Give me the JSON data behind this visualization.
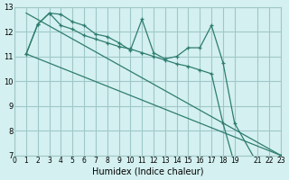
{
  "xlabel": "Humidex (Indice chaleur)",
  "background_color": "#d4f0f0",
  "grid_color": "#a0c8c8",
  "line_color": "#2e7d6e",
  "xlim": [
    0,
    23
  ],
  "ylim": [
    7,
    13
  ],
  "yticks": [
    7,
    8,
    9,
    10,
    11,
    12,
    13
  ],
  "xticks": [
    0,
    1,
    2,
    3,
    4,
    5,
    6,
    7,
    8,
    9,
    10,
    11,
    12,
    13,
    14,
    15,
    16,
    17,
    18,
    19,
    21,
    22,
    23
  ],
  "xtick_labels": [
    "0",
    "1",
    "2",
    "3",
    "4",
    "5",
    "6",
    "7",
    "8",
    "9",
    "10",
    "11",
    "12",
    "13",
    "14",
    "15",
    "16",
    "17",
    "18",
    "19",
    "21",
    "22",
    "23"
  ],
  "noisy_x": [
    1,
    2,
    3,
    4,
    5,
    6,
    7,
    8,
    9,
    10,
    11,
    12,
    13,
    14,
    15,
    16,
    17,
    18,
    19,
    21,
    22,
    23
  ],
  "noisy_y": [
    11.1,
    12.3,
    12.75,
    12.7,
    12.4,
    12.25,
    11.9,
    11.8,
    11.55,
    11.25,
    12.5,
    11.15,
    10.9,
    11.0,
    11.35,
    11.35,
    12.25,
    10.75,
    8.3,
    6.65,
    6.65,
    7.0
  ],
  "line1_x": [
    1,
    2,
    3,
    4,
    5,
    6,
    7,
    8,
    9,
    10,
    11,
    12,
    13,
    14,
    15,
    16,
    17,
    18,
    19,
    21,
    22,
    23
  ],
  "line1_y": [
    11.1,
    12.3,
    12.75,
    12.25,
    12.1,
    11.85,
    11.7,
    11.55,
    11.4,
    11.3,
    11.15,
    11.0,
    10.85,
    10.7,
    10.6,
    10.45,
    10.3,
    8.3,
    6.65,
    6.65,
    6.65,
    7.0
  ],
  "line2_x": [
    1,
    23
  ],
  "line2_y": [
    11.1,
    7.0
  ],
  "line3_x": [
    1,
    23
  ],
  "line3_y": [
    12.75,
    7.0
  ]
}
